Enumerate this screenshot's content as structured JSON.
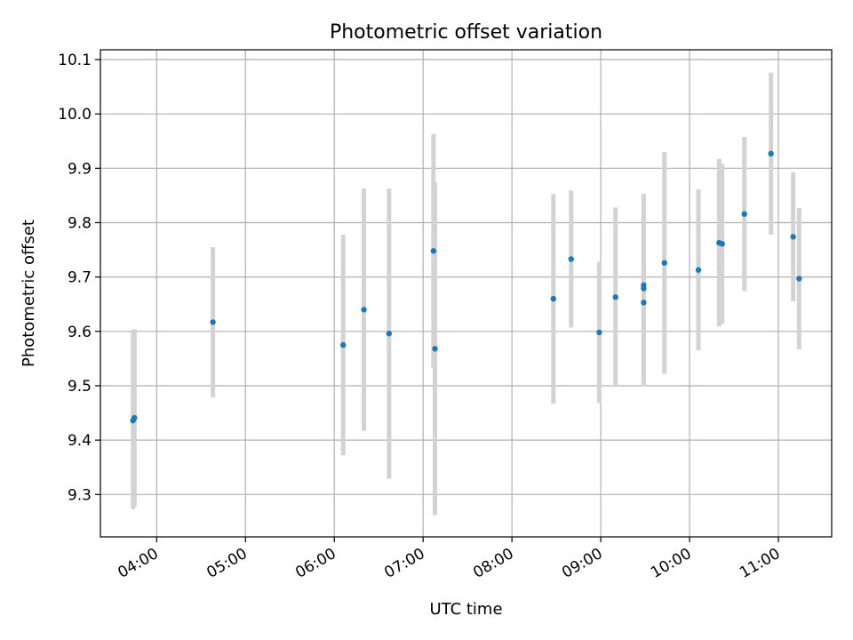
{
  "chart_data": {
    "type": "scatter",
    "title": "Photometric offset variation",
    "xlabel": "UTC time",
    "ylabel": "Photometric offset",
    "x_unit": "UTC time (HH:MM)",
    "xlim": [
      "03:22",
      "11:36"
    ],
    "ylim": [
      9.222,
      10.118
    ],
    "x_ticks": [
      "04:00",
      "05:00",
      "06:00",
      "07:00",
      "08:00",
      "09:00",
      "10:00",
      "11:00"
    ],
    "y_ticks": [
      "9.3",
      "9.4",
      "9.5",
      "9.6",
      "9.7",
      "9.8",
      "9.9",
      "10.0",
      "10.1"
    ],
    "grid": true,
    "colors": {
      "point": "#1f77b4",
      "errorbar": "#d3d3d3",
      "grid": "#b0b0b0",
      "axes": "#000000"
    },
    "points": [
      {
        "x": "03:44",
        "y": 9.436,
        "err": 0.163
      },
      {
        "x": "03:45",
        "y": 9.441,
        "err": 0.163
      },
      {
        "x": "04:38",
        "y": 9.617,
        "err": 0.138
      },
      {
        "x": "06:06",
        "y": 9.575,
        "err": 0.203
      },
      {
        "x": "06:20",
        "y": 9.64,
        "err": 0.223
      },
      {
        "x": "06:37",
        "y": 9.596,
        "err": 0.267
      },
      {
        "x": "07:07",
        "y": 9.748,
        "err": 0.215
      },
      {
        "x": "07:08",
        "y": 9.568,
        "err": 0.306
      },
      {
        "x": "08:28",
        "y": 9.66,
        "err": 0.193
      },
      {
        "x": "08:40",
        "y": 9.733,
        "err": 0.126
      },
      {
        "x": "08:59",
        "y": 9.598,
        "err": 0.13
      },
      {
        "x": "09:10",
        "y": 9.663,
        "err": 0.165
      },
      {
        "x": "09:29",
        "y": 9.685,
        "err": 0.168
      },
      {
        "x": "09:29",
        "y": 9.679,
        "err": 0.172
      },
      {
        "x": "09:29",
        "y": 9.653,
        "err": 0.154
      },
      {
        "x": "09:43",
        "y": 9.726,
        "err": 0.204
      },
      {
        "x": "10:06",
        "y": 9.713,
        "err": 0.148
      },
      {
        "x": "10:20",
        "y": 9.763,
        "err": 0.154
      },
      {
        "x": "10:22",
        "y": 9.761,
        "err": 0.147
      },
      {
        "x": "10:37",
        "y": 9.816,
        "err": 0.142
      },
      {
        "x": "10:55",
        "y": 9.927,
        "err": 0.149
      },
      {
        "x": "11:10",
        "y": 9.774,
        "err": 0.119
      },
      {
        "x": "11:14",
        "y": 9.697,
        "err": 0.13
      }
    ]
  }
}
